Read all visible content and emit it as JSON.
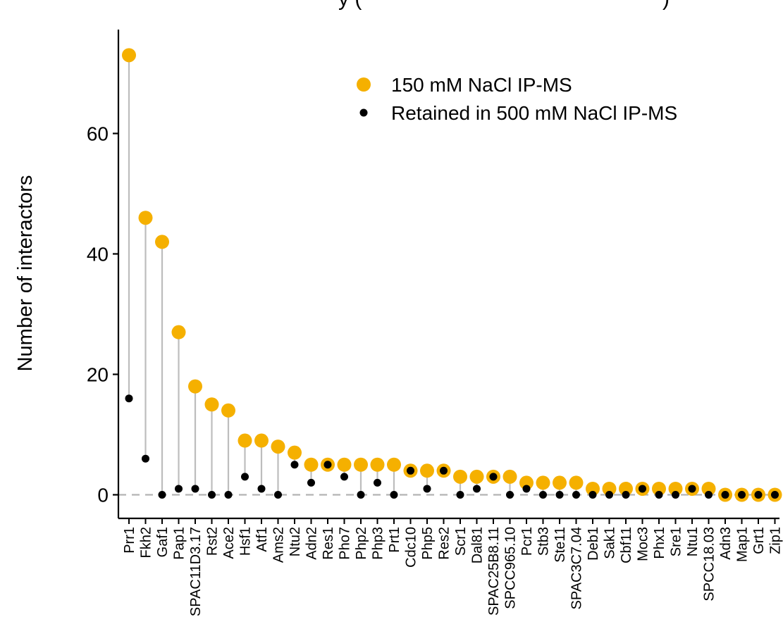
{
  "chart_data": {
    "type": "scatter",
    "title": "y (",
    "title_end": ")",
    "xlabel": "",
    "ylabel": "Number of interactors",
    "ylim": [
      -3,
      74
    ],
    "yticks": [
      0,
      20,
      40,
      60
    ],
    "categories": [
      "Prr1",
      "Fkh2",
      "Gaf1",
      "Pap1",
      "SPAC11D3.17",
      "Rst2",
      "Ace2",
      "Hsf1",
      "Atf1",
      "Ams2",
      "Ntu2",
      "Adn2",
      "Res1",
      "Pho7",
      "Php2",
      "Php3",
      "Prt1",
      "Cdc10",
      "Php5",
      "Res2",
      "Scr1",
      "Dal81",
      "SPAC25B8.11",
      "SPCC965.10",
      "Pcr1",
      "Stb3",
      "Ste11",
      "SPAC3C7.04",
      "Deb1",
      "Sak1",
      "Cbf11",
      "Moc3",
      "Phx1",
      "Sre1",
      "Ntu1",
      "SPCC18.03",
      "Adn3",
      "Map1",
      "Grt1",
      "Zip1"
    ],
    "series": [
      {
        "name": "150 mM NaCl IP-MS",
        "color": "#F5B000",
        "values": [
          73,
          46,
          42,
          27,
          18,
          15,
          14,
          9,
          9,
          8,
          7,
          5,
          5,
          5,
          5,
          5,
          5,
          4,
          4,
          4,
          3,
          3,
          3,
          3,
          2,
          2,
          2,
          2,
          1,
          1,
          1,
          1,
          1,
          1,
          1,
          1,
          0,
          0,
          0,
          0
        ]
      },
      {
        "name": "Retained in 500 mM NaCl IP-MS",
        "color": "#000000",
        "values": [
          16,
          6,
          0,
          1,
          1,
          0,
          0,
          3,
          1,
          0,
          5,
          2,
          5,
          3,
          0,
          2,
          0,
          4,
          1,
          4,
          0,
          1,
          3,
          0,
          1,
          0,
          0,
          0,
          0,
          0,
          0,
          1,
          0,
          0,
          1,
          0,
          0,
          0,
          0,
          0
        ]
      }
    ],
    "legend": {
      "position": "top-right"
    },
    "zero_line": "dashed",
    "grid": false
  }
}
